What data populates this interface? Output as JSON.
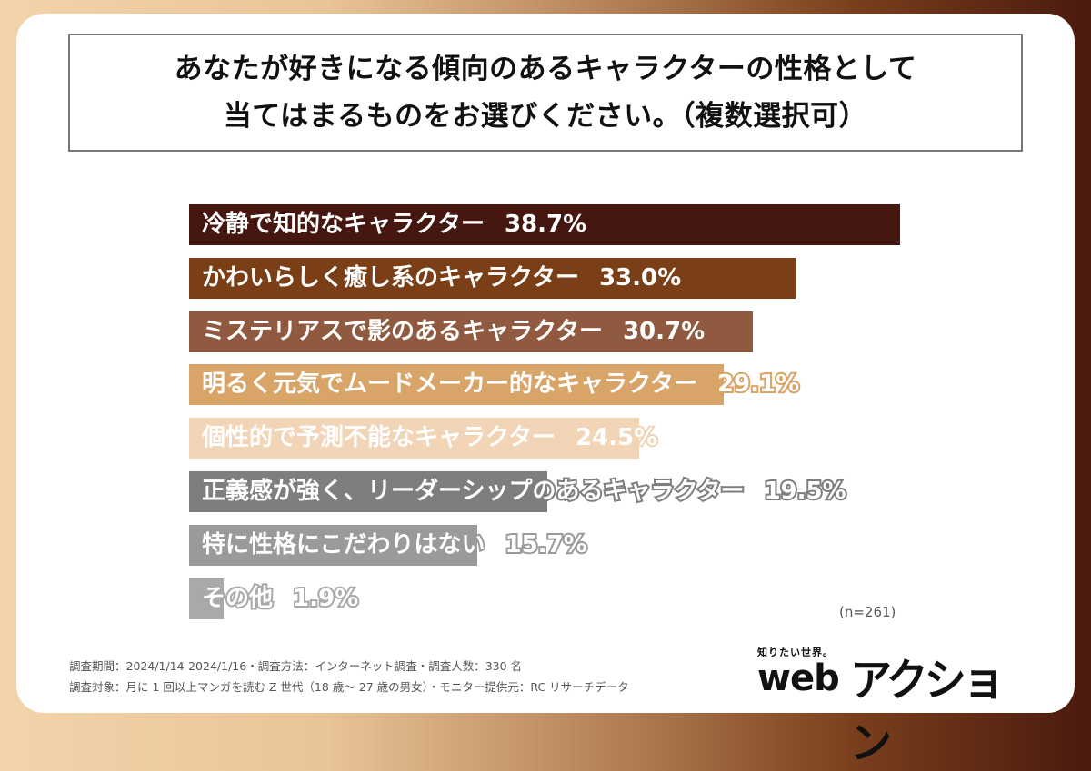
{
  "title": {
    "line1": "あなたが好きになる傾向のあるキャラクターの性格として",
    "line2": "当てはまるものをお選びください。（複数選択可）"
  },
  "chart_data": {
    "type": "bar",
    "orientation": "horizontal",
    "title": "あなたが好きになる傾向のあるキャラクターの性格として当てはまるものをお選びください。（複数選択可）",
    "categories": [
      "冷静で知的なキャラクター",
      "かわいらしく癒し系のキャラクター",
      "ミステリアスで影のあるキャラクター",
      "明るく元気でムードメーカー的なキャラクター",
      "個性的で予測不能なキャラクター",
      "正義感が強く、リーダーシップのあるキャラクター",
      "特に性格にこだわりはない",
      "その他"
    ],
    "values": [
      38.7,
      33.0,
      30.7,
      29.1,
      24.5,
      19.5,
      15.7,
      1.9
    ],
    "value_labels": [
      "38.7%",
      "33.0%",
      "30.7%",
      "29.1%",
      "24.5%",
      "19.5%",
      "15.7%",
      "1.9%"
    ],
    "colors": [
      "#451710",
      "#7a3f16",
      "#8f5a3f",
      "#d9a468",
      "#f2d4b6",
      "#7e7e7e",
      "#9a9a9a",
      "#a9a9a9"
    ],
    "unit": "%",
    "sample_size": "(n=261)",
    "xlabel": "",
    "ylabel": "",
    "grid": false,
    "legend": false
  },
  "sample_size_label": "(n=261)",
  "footer": {
    "line1": "調査期間：2024/1/14-2024/1/16・調査方法：インターネット調査・調査人数：330 名",
    "line2": "調査対象：月に 1 回以上マンガを読む Z 世代（18 歳〜 27 歳の男女）・モニター提供元：RC リサーチデータ"
  },
  "logo": {
    "tagline": "知りたい世界。",
    "web": "web",
    "kana": "アクション"
  }
}
